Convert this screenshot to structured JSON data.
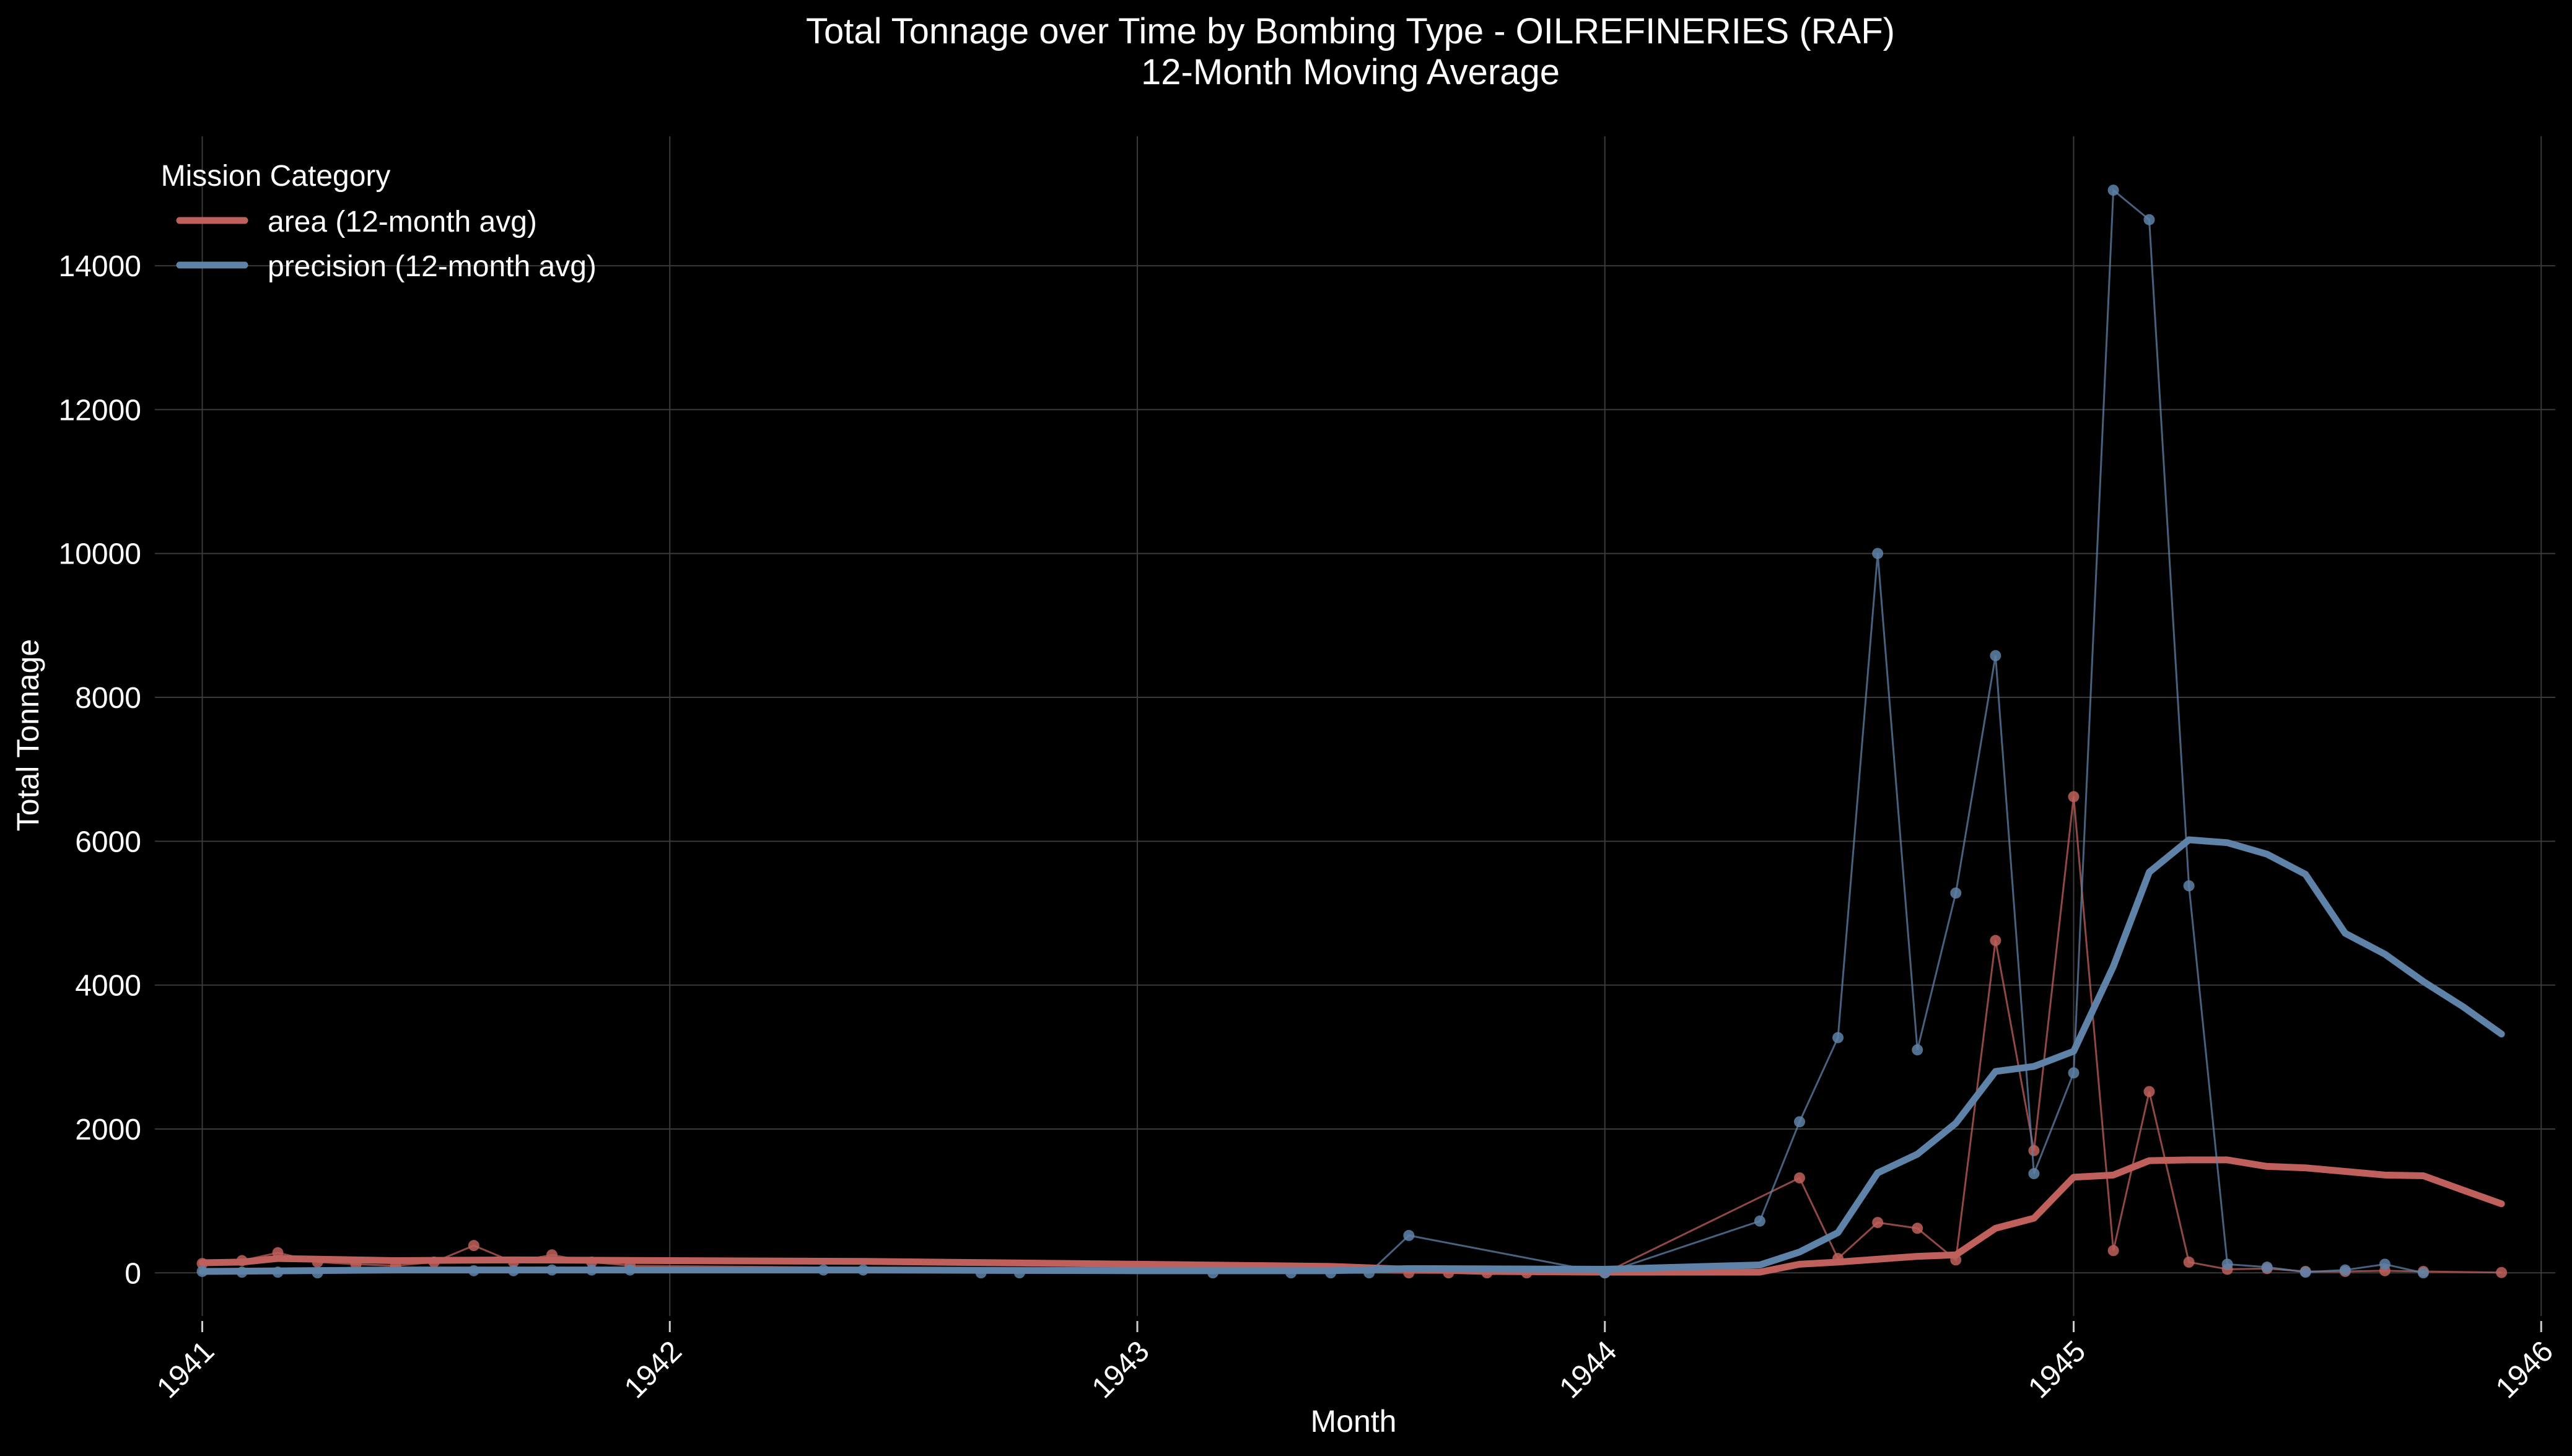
{
  "chart_data": {
    "type": "line",
    "title": "Total Tonnage over Time by Bombing Type - OILREFINERIES (RAF)",
    "subtitle": "12-Month Moving Average",
    "xlabel": "Month",
    "ylabel": "Total Tonnage",
    "xlim": [
      "1940-11-25",
      "1946-01-12"
    ],
    "ylim": [
      -600,
      15800
    ],
    "x_ticks": [
      "1941",
      "1942",
      "1943",
      "1944",
      "1945",
      "1946"
    ],
    "y_ticks": [
      0,
      2000,
      4000,
      6000,
      8000,
      10000,
      12000,
      14000
    ],
    "grid": true,
    "legend": {
      "title": "Mission Category",
      "position": "top-left",
      "entries": [
        "area (12-month avg)",
        "precision (12-month avg)"
      ]
    },
    "colors": {
      "area": "#c0605c",
      "precision": "#5f82a8",
      "background": "#000000",
      "grid": "#3a3a3a"
    },
    "series": [
      {
        "name": "area",
        "monthly": [
          [
            "1941-01",
            130
          ],
          [
            "1941-02",
            170
          ],
          [
            "1941-03",
            280
          ],
          [
            "1941-04",
            150
          ],
          [
            "1941-05",
            120
          ],
          [
            "1941-06",
            100
          ],
          [
            "1941-07",
            150
          ],
          [
            "1941-08",
            380
          ],
          [
            "1941-09",
            150
          ],
          [
            "1941-10",
            250
          ],
          [
            "1941-11",
            150
          ],
          [
            "1941-12",
            100
          ],
          [
            "1943-08",
            0
          ],
          [
            "1943-09",
            0
          ],
          [
            "1943-10",
            0
          ],
          [
            "1943-11",
            0
          ],
          [
            "1944-01",
            0
          ],
          [
            "1944-06",
            1320
          ],
          [
            "1944-07",
            200
          ],
          [
            "1944-08",
            700
          ],
          [
            "1944-09",
            620
          ],
          [
            "1944-10",
            180
          ],
          [
            "1944-11",
            4620
          ],
          [
            "1944-12",
            1700
          ],
          [
            "1945-01",
            6620
          ],
          [
            "1945-02",
            310
          ],
          [
            "1945-03",
            2520
          ],
          [
            "1945-04",
            150
          ],
          [
            "1945-05",
            50
          ],
          [
            "1945-06",
            60
          ],
          [
            "1945-07",
            20
          ],
          [
            "1945-08",
            20
          ],
          [
            "1945-09",
            30
          ],
          [
            "1945-10",
            20
          ],
          [
            "1945-12",
            5
          ]
        ],
        "moving_avg": [
          [
            "1941-01",
            140
          ],
          [
            "1941-02",
            150
          ],
          [
            "1941-03",
            200
          ],
          [
            "1941-06",
            170
          ],
          [
            "1941-09",
            180
          ],
          [
            "1942-01",
            170
          ],
          [
            "1942-06",
            160
          ],
          [
            "1943-01",
            120
          ],
          [
            "1943-06",
            90
          ],
          [
            "1943-08",
            50
          ],
          [
            "1943-10",
            20
          ],
          [
            "1944-01",
            10
          ],
          [
            "1944-05",
            10
          ],
          [
            "1944-06",
            120
          ],
          [
            "1944-07",
            150
          ],
          [
            "1944-08",
            190
          ],
          [
            "1944-09",
            230
          ],
          [
            "1944-10",
            250
          ],
          [
            "1944-11",
            620
          ],
          [
            "1944-12",
            760
          ],
          [
            "1945-01",
            1330
          ],
          [
            "1945-02",
            1360
          ],
          [
            "1945-03",
            1560
          ],
          [
            "1945-04",
            1570
          ],
          [
            "1945-05",
            1570
          ],
          [
            "1945-06",
            1480
          ],
          [
            "1945-07",
            1460
          ],
          [
            "1945-08",
            1410
          ],
          [
            "1945-09",
            1360
          ],
          [
            "1945-10",
            1350
          ],
          [
            "1945-11",
            1150
          ],
          [
            "1945-12",
            960
          ]
        ]
      },
      {
        "name": "precision",
        "monthly": [
          [
            "1941-01",
            20
          ],
          [
            "1941-02",
            10
          ],
          [
            "1941-03",
            10
          ],
          [
            "1941-04",
            0
          ],
          [
            "1941-08",
            30
          ],
          [
            "1941-09",
            30
          ],
          [
            "1941-10",
            40
          ],
          [
            "1941-11",
            40
          ],
          [
            "1941-12",
            40
          ],
          [
            "1942-05",
            40
          ],
          [
            "1942-06",
            40
          ],
          [
            "1942-09",
            0
          ],
          [
            "1942-10",
            0
          ],
          [
            "1943-03",
            0
          ],
          [
            "1943-05",
            0
          ],
          [
            "1943-06",
            0
          ],
          [
            "1943-07",
            0
          ],
          [
            "1943-08",
            520
          ],
          [
            "1944-01",
            0
          ],
          [
            "1944-05",
            720
          ],
          [
            "1944-06",
            2100
          ],
          [
            "1944-07",
            3270
          ],
          [
            "1944-08",
            10000
          ],
          [
            "1944-09",
            3100
          ],
          [
            "1944-10",
            5280
          ],
          [
            "1944-11",
            8580
          ],
          [
            "1944-12",
            1380
          ],
          [
            "1945-01",
            2780
          ],
          [
            "1945-02",
            15050
          ],
          [
            "1945-03",
            14640
          ],
          [
            "1945-04",
            5380
          ],
          [
            "1945-05",
            120
          ],
          [
            "1945-06",
            80
          ],
          [
            "1945-07",
            10
          ],
          [
            "1945-08",
            40
          ],
          [
            "1945-09",
            120
          ],
          [
            "1945-10",
            0
          ]
        ],
        "moving_avg": [
          [
            "1941-01",
            20
          ],
          [
            "1941-06",
            40
          ],
          [
            "1942-01",
            40
          ],
          [
            "1942-06",
            40
          ],
          [
            "1943-01",
            30
          ],
          [
            "1943-06",
            30
          ],
          [
            "1943-08",
            60
          ],
          [
            "1944-01",
            50
          ],
          [
            "1944-05",
            110
          ],
          [
            "1944-06",
            290
          ],
          [
            "1944-07",
            560
          ],
          [
            "1944-08",
            1390
          ],
          [
            "1944-09",
            1650
          ],
          [
            "1944-10",
            2080
          ],
          [
            "1944-11",
            2800
          ],
          [
            "1944-12",
            2870
          ],
          [
            "1945-01",
            3080
          ],
          [
            "1945-02",
            4260
          ],
          [
            "1945-03",
            5570
          ],
          [
            "1945-04",
            6020
          ],
          [
            "1945-05",
            5980
          ],
          [
            "1945-06",
            5820
          ],
          [
            "1945-07",
            5540
          ],
          [
            "1945-08",
            4720
          ],
          [
            "1945-09",
            4430
          ],
          [
            "1945-10",
            4050
          ],
          [
            "1945-11",
            3700
          ],
          [
            "1945-12",
            3320
          ]
        ]
      }
    ]
  }
}
